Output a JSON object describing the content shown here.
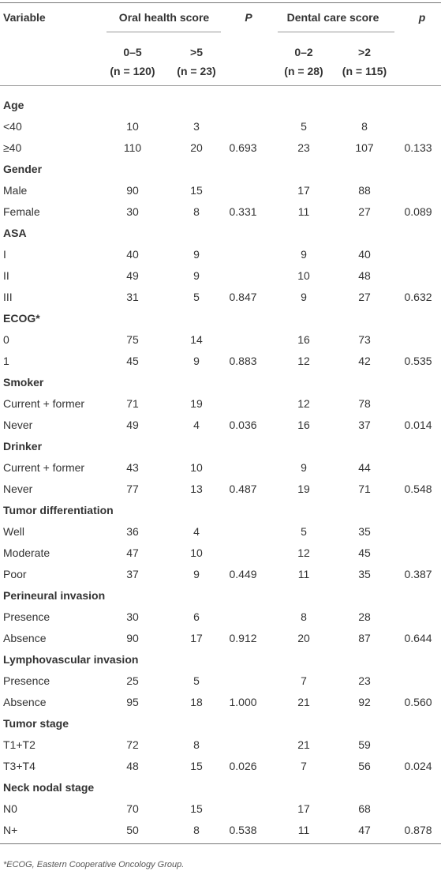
{
  "table": {
    "header": {
      "variable": "Variable",
      "group1": "Oral health score",
      "p1": "P",
      "group2": "Dental care score",
      "p2": "p",
      "sub": [
        [
          "0–5",
          "(n = 120)"
        ],
        [
          ">5",
          "(n = 23)"
        ],
        [
          "0–2",
          "(n = 28)"
        ],
        [
          ">2",
          "(n = 115)"
        ]
      ]
    },
    "groups": [
      {
        "label": "Age",
        "p_oral": "0.693",
        "p_dental": "0.133",
        "rows": [
          [
            "<40",
            "10",
            "3",
            "5",
            "8"
          ],
          [
            "≥40",
            "110",
            "20",
            "23",
            "107"
          ]
        ]
      },
      {
        "label": "Gender",
        "p_oral": "0.331",
        "p_dental": "0.089",
        "rows": [
          [
            "Male",
            "90",
            "15",
            "17",
            "88"
          ],
          [
            "Female",
            "30",
            "8",
            "11",
            "27"
          ]
        ]
      },
      {
        "label": "ASA",
        "p_oral": "0.847",
        "p_dental": "0.632",
        "rows": [
          [
            "I",
            "40",
            "9",
            "9",
            "40"
          ],
          [
            "II",
            "49",
            "9",
            "10",
            "48"
          ],
          [
            "III",
            "31",
            "5",
            "9",
            "27"
          ]
        ]
      },
      {
        "label": "ECOG*",
        "p_oral": "0.883",
        "p_dental": "0.535",
        "rows": [
          [
            "0",
            "75",
            "14",
            "16",
            "73"
          ],
          [
            "1",
            "45",
            "9",
            "12",
            "42"
          ]
        ]
      },
      {
        "label": "Smoker",
        "p_oral": "0.036",
        "p_dental": "0.014",
        "rows": [
          [
            "Current + former",
            "71",
            "19",
            "12",
            "78"
          ],
          [
            "Never",
            "49",
            "4",
            "16",
            "37"
          ]
        ]
      },
      {
        "label": "Drinker",
        "p_oral": "0.487",
        "p_dental": "0.548",
        "rows": [
          [
            "Current + former",
            "43",
            "10",
            "9",
            "44"
          ],
          [
            "Never",
            "77",
            "13",
            "19",
            "71"
          ]
        ]
      },
      {
        "label": "Tumor differentiation",
        "p_oral": "0.449",
        "p_dental": "0.387",
        "rows": [
          [
            "Well",
            "36",
            "4",
            "5",
            "35"
          ],
          [
            "Moderate",
            "47",
            "10",
            "12",
            "45"
          ],
          [
            "Poor",
            "37",
            "9",
            "11",
            "35"
          ]
        ]
      },
      {
        "label": "Perineural invasion",
        "p_oral": "0.912",
        "p_dental": "0.644",
        "rows": [
          [
            "Presence",
            "30",
            "6",
            "8",
            "28"
          ],
          [
            "Absence",
            "90",
            "17",
            "20",
            "87"
          ]
        ]
      },
      {
        "label": "Lymphovascular invasion",
        "p_oral": "1.000",
        "p_dental": "0.560",
        "rows": [
          [
            "Presence",
            "25",
            "5",
            "7",
            "23"
          ],
          [
            "Absence",
            "95",
            "18",
            "21",
            "92"
          ]
        ]
      },
      {
        "label": "Tumor stage",
        "p_oral": "0.026",
        "p_dental": "0.024",
        "rows": [
          [
            "T1+T2",
            "72",
            "8",
            "21",
            "59"
          ],
          [
            "T3+T4",
            "48",
            "15",
            "7",
            "56"
          ]
        ]
      },
      {
        "label": "Neck nodal stage",
        "p_oral": "0.538",
        "p_dental": "0.878",
        "rows": [
          [
            "N0",
            "70",
            "15",
            "17",
            "68"
          ],
          [
            "N+",
            "50",
            "8",
            "11",
            "47"
          ]
        ]
      }
    ],
    "footnote": "*ECOG, Eastern Cooperative Oncology Group."
  }
}
